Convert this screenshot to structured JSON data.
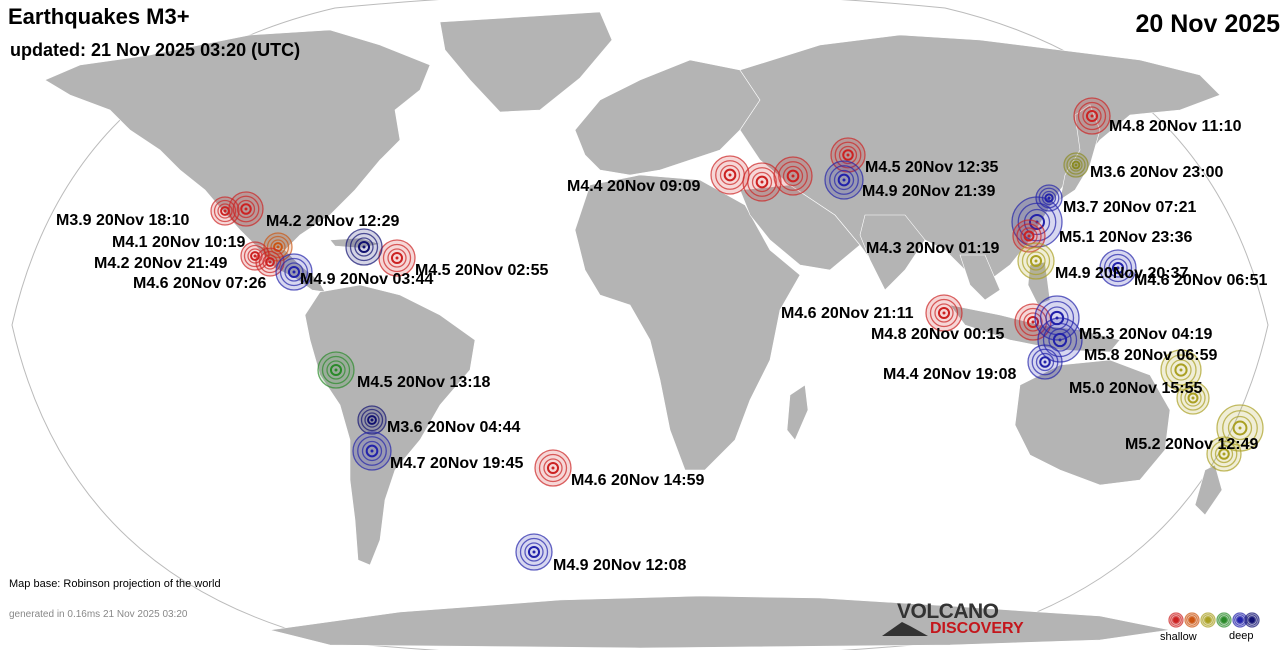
{
  "header": {
    "title": "Earthquakes M3+",
    "updated": "updated: 21 Nov 2025 03:20 (UTC)",
    "date": "20 Nov 2025"
  },
  "footer": {
    "map_base": "Map base: Robinson projection of the world",
    "generated": "generated in 0.16ms 21 Nov 2025 03:20",
    "logo_line1": "VOLCANO",
    "logo_line2": "DISCOVERY"
  },
  "legend": {
    "shallow": "shallow",
    "deep": "deep",
    "colors": [
      "#cc2222",
      "#cc5511",
      "#aaa022",
      "#2a8a2a",
      "#2222aa",
      "#101070"
    ]
  },
  "quakes": [
    {
      "label": "M4.8 20Nov 11:10",
      "color": "#cc2222"
    },
    {
      "label": "M3.6 20Nov 23:00",
      "color": "#8a8a22"
    },
    {
      "label": "M4.5 20Nov 12:35",
      "color": "#cc2222"
    },
    {
      "label": "M4.9 20Nov 21:39",
      "color": "#2222aa"
    },
    {
      "label": "M4.4 20Nov 09:09",
      "color": "#cc2222"
    },
    {
      "label": "M3.7 20Nov 07:21",
      "color": "#2222aa"
    },
    {
      "label": "M5.1 20Nov 23:36",
      "color": "#2222aa"
    },
    {
      "label": "M4.3 20Nov 01:19",
      "color": "#cc2222"
    },
    {
      "label": "M4.9 20Nov 20:37",
      "color": "#aaa022"
    },
    {
      "label": "M4.6 20Nov 06:51",
      "color": "#2222aa"
    },
    {
      "label": "M4.6 20Nov 21:11",
      "color": "#cc2222"
    },
    {
      "label": "M4.8 20Nov 00:15",
      "color": "#cc2222"
    },
    {
      "label": "M5.3 20Nov 04:19",
      "color": "#2222aa"
    },
    {
      "label": "M5.8 20Nov 06:59",
      "color": "#2222aa"
    },
    {
      "label": "M4.4 20Nov 19:08",
      "color": "#2222aa"
    },
    {
      "label": "M5.0 20Nov 15:55",
      "color": "#aaa022"
    },
    {
      "label": "M5.2 20Nov 12:49",
      "color": "#aaa022"
    },
    {
      "label": "M3.9 20Nov 18:10",
      "color": "#cc2222"
    },
    {
      "label": "M4.2 20Nov 12:29",
      "color": "#cc2222"
    },
    {
      "label": "M4.1 20Nov 10:19",
      "color": "#cc5511"
    },
    {
      "label": "M4.2 20Nov 21:49",
      "color": "#cc2222"
    },
    {
      "label": "M4.6 20Nov 07:26",
      "color": "#cc2222"
    },
    {
      "label": "M4.9 20Nov 03:44",
      "color": "#2222aa"
    },
    {
      "label": "M4.5 20Nov 02:55",
      "color": "#cc2222"
    },
    {
      "label": "M4.5 20Nov 13:18",
      "color": "#2a8a2a"
    },
    {
      "label": "M3.6 20Nov 04:44",
      "color": "#101070"
    },
    {
      "label": "M4.7 20Nov 19:45",
      "color": "#2222aa"
    },
    {
      "label": "M4.6 20Nov 14:59",
      "color": "#cc2222"
    },
    {
      "label": "M4.9 20Nov 12:08",
      "color": "#2222aa"
    }
  ]
}
